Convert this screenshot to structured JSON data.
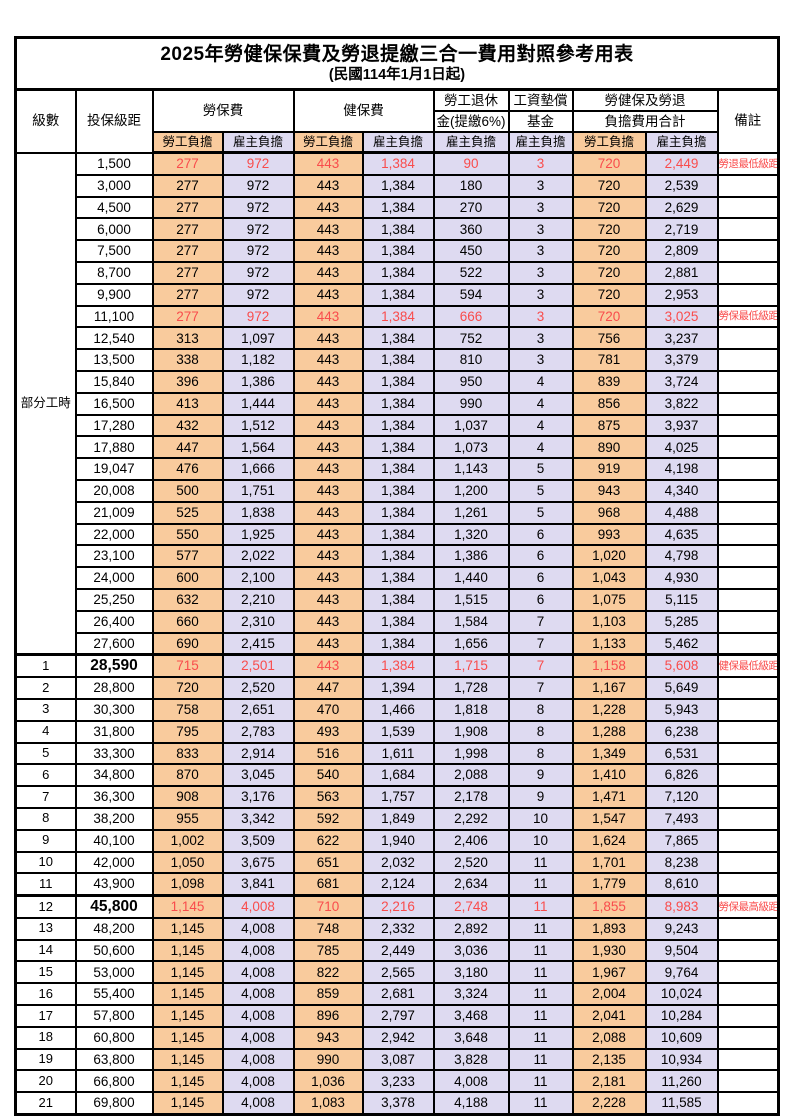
{
  "title": "2025年勞健保保費及勞退提繳三合一費用對照參考用表",
  "subtitle": "(民國114年1月1日起)",
  "header": {
    "level": "級數",
    "bracket": "投保級距",
    "labor_insurance": "勞保費",
    "health_insurance": "健保費",
    "pension_line1": "勞工退休",
    "pension_line2": "金(提繳6%)",
    "wage_fund_line1": "工資墊償",
    "wage_fund_line2": "基金",
    "total_line1": "勞健保及勞退",
    "total_line2": "負擔費用合計",
    "remarks": "備註",
    "employee": "勞工負擔",
    "employer": "雇主負擔",
    "part_time": "部分工時"
  },
  "colors": {
    "employee_bg": "#f9cb9d",
    "employer_bg": "#dedaf1",
    "highlight_text": "#f94c4c",
    "border": "#000000"
  },
  "rows": [
    {
      "level": "",
      "bracket": "1,500",
      "cells": [
        "277",
        "972",
        "443",
        "1,384",
        "90",
        "3",
        "720",
        "2,449"
      ],
      "remark": "勞退最低級距",
      "red": true,
      "bold": false
    },
    {
      "level": "",
      "bracket": "3,000",
      "cells": [
        "277",
        "972",
        "443",
        "1,384",
        "180",
        "3",
        "720",
        "2,539"
      ],
      "remark": "",
      "red": false,
      "bold": false
    },
    {
      "level": "",
      "bracket": "4,500",
      "cells": [
        "277",
        "972",
        "443",
        "1,384",
        "270",
        "3",
        "720",
        "2,629"
      ],
      "remark": "",
      "red": false,
      "bold": false
    },
    {
      "level": "",
      "bracket": "6,000",
      "cells": [
        "277",
        "972",
        "443",
        "1,384",
        "360",
        "3",
        "720",
        "2,719"
      ],
      "remark": "",
      "red": false,
      "bold": false
    },
    {
      "level": "",
      "bracket": "7,500",
      "cells": [
        "277",
        "972",
        "443",
        "1,384",
        "450",
        "3",
        "720",
        "2,809"
      ],
      "remark": "",
      "red": false,
      "bold": false
    },
    {
      "level": "",
      "bracket": "8,700",
      "cells": [
        "277",
        "972",
        "443",
        "1,384",
        "522",
        "3",
        "720",
        "2,881"
      ],
      "remark": "",
      "red": false,
      "bold": false
    },
    {
      "level": "",
      "bracket": "9,900",
      "cells": [
        "277",
        "972",
        "443",
        "1,384",
        "594",
        "3",
        "720",
        "2,953"
      ],
      "remark": "",
      "red": false,
      "bold": false
    },
    {
      "level": "",
      "bracket": "11,100",
      "cells": [
        "277",
        "972",
        "443",
        "1,384",
        "666",
        "3",
        "720",
        "3,025"
      ],
      "remark": "勞保最低級距",
      "red": true,
      "bold": false
    },
    {
      "level": "",
      "bracket": "12,540",
      "cells": [
        "313",
        "1,097",
        "443",
        "1,384",
        "752",
        "3",
        "756",
        "3,237"
      ],
      "remark": "",
      "red": false,
      "bold": false
    },
    {
      "level": "",
      "bracket": "13,500",
      "cells": [
        "338",
        "1,182",
        "443",
        "1,384",
        "810",
        "3",
        "781",
        "3,379"
      ],
      "remark": "",
      "red": false,
      "bold": false
    },
    {
      "level": "",
      "bracket": "15,840",
      "cells": [
        "396",
        "1,386",
        "443",
        "1,384",
        "950",
        "4",
        "839",
        "3,724"
      ],
      "remark": "",
      "red": false,
      "bold": false
    },
    {
      "level": "",
      "bracket": "16,500",
      "cells": [
        "413",
        "1,444",
        "443",
        "1,384",
        "990",
        "4",
        "856",
        "3,822"
      ],
      "remark": "",
      "red": false,
      "bold": false
    },
    {
      "level": "",
      "bracket": "17,280",
      "cells": [
        "432",
        "1,512",
        "443",
        "1,384",
        "1,037",
        "4",
        "875",
        "3,937"
      ],
      "remark": "",
      "red": false,
      "bold": false
    },
    {
      "level": "",
      "bracket": "17,880",
      "cells": [
        "447",
        "1,564",
        "443",
        "1,384",
        "1,073",
        "4",
        "890",
        "4,025"
      ],
      "remark": "",
      "red": false,
      "bold": false
    },
    {
      "level": "",
      "bracket": "19,047",
      "cells": [
        "476",
        "1,666",
        "443",
        "1,384",
        "1,143",
        "5",
        "919",
        "4,198"
      ],
      "remark": "",
      "red": false,
      "bold": false
    },
    {
      "level": "",
      "bracket": "20,008",
      "cells": [
        "500",
        "1,751",
        "443",
        "1,384",
        "1,200",
        "5",
        "943",
        "4,340"
      ],
      "remark": "",
      "red": false,
      "bold": false
    },
    {
      "level": "",
      "bracket": "21,009",
      "cells": [
        "525",
        "1,838",
        "443",
        "1,384",
        "1,261",
        "5",
        "968",
        "4,488"
      ],
      "remark": "",
      "red": false,
      "bold": false
    },
    {
      "level": "",
      "bracket": "22,000",
      "cells": [
        "550",
        "1,925",
        "443",
        "1,384",
        "1,320",
        "6",
        "993",
        "4,635"
      ],
      "remark": "",
      "red": false,
      "bold": false
    },
    {
      "level": "",
      "bracket": "23,100",
      "cells": [
        "577",
        "2,022",
        "443",
        "1,384",
        "1,386",
        "6",
        "1,020",
        "4,798"
      ],
      "remark": "",
      "red": false,
      "bold": false
    },
    {
      "level": "",
      "bracket": "24,000",
      "cells": [
        "600",
        "2,100",
        "443",
        "1,384",
        "1,440",
        "6",
        "1,043",
        "4,930"
      ],
      "remark": "",
      "red": false,
      "bold": false
    },
    {
      "level": "",
      "bracket": "25,250",
      "cells": [
        "632",
        "2,210",
        "443",
        "1,384",
        "1,515",
        "6",
        "1,075",
        "5,115"
      ],
      "remark": "",
      "red": false,
      "bold": false
    },
    {
      "level": "",
      "bracket": "26,400",
      "cells": [
        "660",
        "2,310",
        "443",
        "1,384",
        "1,584",
        "7",
        "1,103",
        "5,285"
      ],
      "remark": "",
      "red": false,
      "bold": false
    },
    {
      "level": "",
      "bracket": "27,600",
      "cells": [
        "690",
        "2,415",
        "443",
        "1,384",
        "1,656",
        "7",
        "1,133",
        "5,462"
      ],
      "remark": "",
      "red": false,
      "bold": false
    },
    {
      "level": "1",
      "bracket": "28,590",
      "cells": [
        "715",
        "2,501",
        "443",
        "1,384",
        "1,715",
        "7",
        "1,158",
        "5,608"
      ],
      "remark": "健保最低級距",
      "red": true,
      "bold": true
    },
    {
      "level": "2",
      "bracket": "28,800",
      "cells": [
        "720",
        "2,520",
        "447",
        "1,394",
        "1,728",
        "7",
        "1,167",
        "5,649"
      ],
      "remark": "",
      "red": false,
      "bold": false
    },
    {
      "level": "3",
      "bracket": "30,300",
      "cells": [
        "758",
        "2,651",
        "470",
        "1,466",
        "1,818",
        "8",
        "1,228",
        "5,943"
      ],
      "remark": "",
      "red": false,
      "bold": false
    },
    {
      "level": "4",
      "bracket": "31,800",
      "cells": [
        "795",
        "2,783",
        "493",
        "1,539",
        "1,908",
        "8",
        "1,288",
        "6,238"
      ],
      "remark": "",
      "red": false,
      "bold": false
    },
    {
      "level": "5",
      "bracket": "33,300",
      "cells": [
        "833",
        "2,914",
        "516",
        "1,611",
        "1,998",
        "8",
        "1,349",
        "6,531"
      ],
      "remark": "",
      "red": false,
      "bold": false
    },
    {
      "level": "6",
      "bracket": "34,800",
      "cells": [
        "870",
        "3,045",
        "540",
        "1,684",
        "2,088",
        "9",
        "1,410",
        "6,826"
      ],
      "remark": "",
      "red": false,
      "bold": false
    },
    {
      "level": "7",
      "bracket": "36,300",
      "cells": [
        "908",
        "3,176",
        "563",
        "1,757",
        "2,178",
        "9",
        "1,471",
        "7,120"
      ],
      "remark": "",
      "red": false,
      "bold": false
    },
    {
      "level": "8",
      "bracket": "38,200",
      "cells": [
        "955",
        "3,342",
        "592",
        "1,849",
        "2,292",
        "10",
        "1,547",
        "7,493"
      ],
      "remark": "",
      "red": false,
      "bold": false
    },
    {
      "level": "9",
      "bracket": "40,100",
      "cells": [
        "1,002",
        "3,509",
        "622",
        "1,940",
        "2,406",
        "10",
        "1,624",
        "7,865"
      ],
      "remark": "",
      "red": false,
      "bold": false
    },
    {
      "level": "10",
      "bracket": "42,000",
      "cells": [
        "1,050",
        "3,675",
        "651",
        "2,032",
        "2,520",
        "11",
        "1,701",
        "8,238"
      ],
      "remark": "",
      "red": false,
      "bold": false
    },
    {
      "level": "11",
      "bracket": "43,900",
      "cells": [
        "1,098",
        "3,841",
        "681",
        "2,124",
        "2,634",
        "11",
        "1,779",
        "8,610"
      ],
      "remark": "",
      "red": false,
      "bold": false
    },
    {
      "level": "12",
      "bracket": "45,800",
      "cells": [
        "1,145",
        "4,008",
        "710",
        "2,216",
        "2,748",
        "11",
        "1,855",
        "8,983"
      ],
      "remark": "勞保最高級距",
      "red": true,
      "bold": true
    },
    {
      "level": "13",
      "bracket": "48,200",
      "cells": [
        "1,145",
        "4,008",
        "748",
        "2,332",
        "2,892",
        "11",
        "1,893",
        "9,243"
      ],
      "remark": "",
      "red": false,
      "bold": false
    },
    {
      "level": "14",
      "bracket": "50,600",
      "cells": [
        "1,145",
        "4,008",
        "785",
        "2,449",
        "3,036",
        "11",
        "1,930",
        "9,504"
      ],
      "remark": "",
      "red": false,
      "bold": false
    },
    {
      "level": "15",
      "bracket": "53,000",
      "cells": [
        "1,145",
        "4,008",
        "822",
        "2,565",
        "3,180",
        "11",
        "1,967",
        "9,764"
      ],
      "remark": "",
      "red": false,
      "bold": false
    },
    {
      "level": "16",
      "bracket": "55,400",
      "cells": [
        "1,145",
        "4,008",
        "859",
        "2,681",
        "3,324",
        "11",
        "2,004",
        "10,024"
      ],
      "remark": "",
      "red": false,
      "bold": false
    },
    {
      "level": "17",
      "bracket": "57,800",
      "cells": [
        "1,145",
        "4,008",
        "896",
        "2,797",
        "3,468",
        "11",
        "2,041",
        "10,284"
      ],
      "remark": "",
      "red": false,
      "bold": false
    },
    {
      "level": "18",
      "bracket": "60,800",
      "cells": [
        "1,145",
        "4,008",
        "943",
        "2,942",
        "3,648",
        "11",
        "2,088",
        "10,609"
      ],
      "remark": "",
      "red": false,
      "bold": false
    },
    {
      "level": "19",
      "bracket": "63,800",
      "cells": [
        "1,145",
        "4,008",
        "990",
        "3,087",
        "3,828",
        "11",
        "2,135",
        "10,934"
      ],
      "remark": "",
      "red": false,
      "bold": false
    },
    {
      "level": "20",
      "bracket": "66,800",
      "cells": [
        "1,145",
        "4,008",
        "1,036",
        "3,233",
        "4,008",
        "11",
        "2,181",
        "11,260"
      ],
      "remark": "",
      "red": false,
      "bold": false
    },
    {
      "level": "21",
      "bracket": "69,800",
      "cells": [
        "1,145",
        "4,008",
        "1,083",
        "3,378",
        "4,188",
        "11",
        "2,228",
        "11,585"
      ],
      "remark": "",
      "red": false,
      "bold": false
    }
  ]
}
